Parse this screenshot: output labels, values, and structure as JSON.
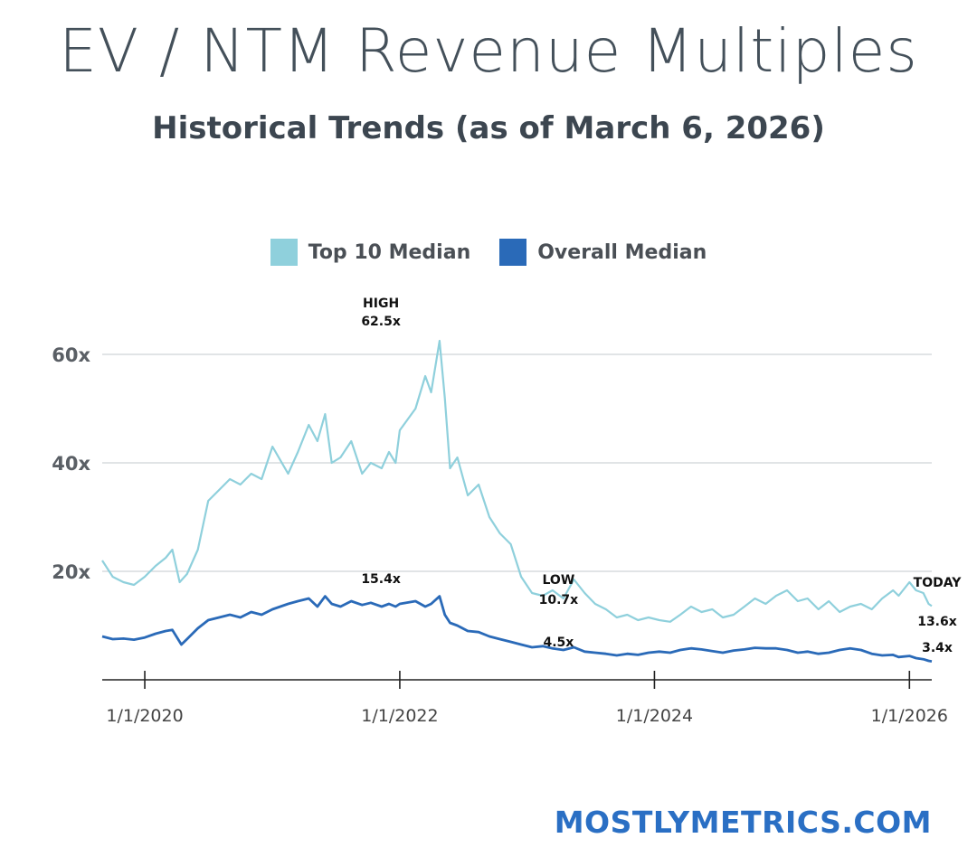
{
  "header": {
    "title": "EV / NTM Revenue Multiples",
    "subtitle": "Historical Trends (as of March 6, 2026)"
  },
  "legend": [
    {
      "label": "Top 10 Median",
      "color": "#8fd0dc"
    },
    {
      "label": "Overall Median",
      "color": "#2a6ab8"
    }
  ],
  "footer": {
    "brand": "MOSTLYMETRICS.COM"
  },
  "chart_data": {
    "type": "line",
    "title": "EV / NTM Revenue Multiples",
    "subtitle": "Historical Trends (as of March 6, 2026)",
    "xlabel": "",
    "ylabel": "",
    "x_ticks": [
      "1/1/2020",
      "1/1/2022",
      "1/1/2024",
      "1/1/2026"
    ],
    "y_ticks": [
      "20x",
      "40x",
      "60x"
    ],
    "ylim": [
      0,
      65
    ],
    "xlim": [
      "2019-09-01",
      "2026-03-06"
    ],
    "grid": true,
    "legend_position": "top-center",
    "series": [
      {
        "name": "Top 10 Median",
        "color": "#8fd0dc",
        "points": [
          [
            "2019-09-01",
            22.0
          ],
          [
            "2019-10-01",
            19.0
          ],
          [
            "2019-11-01",
            18.0
          ],
          [
            "2019-12-01",
            17.5
          ],
          [
            "2020-01-01",
            19.0
          ],
          [
            "2020-02-01",
            21.0
          ],
          [
            "2020-03-01",
            22.5
          ],
          [
            "2020-03-20",
            24.0
          ],
          [
            "2020-04-10",
            18.0
          ],
          [
            "2020-05-01",
            19.5
          ],
          [
            "2020-06-01",
            24.0
          ],
          [
            "2020-07-01",
            33.0
          ],
          [
            "2020-08-01",
            35.0
          ],
          [
            "2020-09-01",
            37.0
          ],
          [
            "2020-10-01",
            36.0
          ],
          [
            "2020-11-01",
            38.0
          ],
          [
            "2020-12-01",
            37.0
          ],
          [
            "2021-01-01",
            43.0
          ],
          [
            "2021-02-15",
            38.0
          ],
          [
            "2021-03-15",
            42.0
          ],
          [
            "2021-04-15",
            47.0
          ],
          [
            "2021-05-10",
            44.0
          ],
          [
            "2021-06-01",
            49.0
          ],
          [
            "2021-06-20",
            40.0
          ],
          [
            "2021-07-15",
            41.0
          ],
          [
            "2021-08-15",
            44.0
          ],
          [
            "2021-09-15",
            38.0
          ],
          [
            "2021-10-10",
            40.0
          ],
          [
            "2021-11-10",
            39.0
          ],
          [
            "2021-12-01",
            42.0
          ],
          [
            "2021-12-20",
            40.0
          ],
          [
            "2022-01-01",
            46.0
          ],
          [
            "2022-02-15",
            50.0
          ],
          [
            "2022-03-15",
            56.0
          ],
          [
            "2022-04-01",
            53.0
          ],
          [
            "2022-04-25",
            62.5
          ],
          [
            "2022-05-10",
            52.0
          ],
          [
            "2022-05-25",
            39.0
          ],
          [
            "2022-06-15",
            41.0
          ],
          [
            "2022-07-15",
            34.0
          ],
          [
            "2022-08-15",
            36.0
          ],
          [
            "2022-09-15",
            30.0
          ],
          [
            "2022-10-15",
            27.0
          ],
          [
            "2022-11-15",
            25.0
          ],
          [
            "2022-12-15",
            19.0
          ],
          [
            "2023-01-15",
            16.0
          ],
          [
            "2023-02-15",
            15.5
          ],
          [
            "2023-03-15",
            16.5
          ],
          [
            "2023-04-15",
            15.0
          ],
          [
            "2023-05-15",
            18.5
          ],
          [
            "2023-06-15",
            16.0
          ],
          [
            "2023-07-15",
            14.0
          ],
          [
            "2023-08-15",
            13.0
          ],
          [
            "2023-09-15",
            11.5
          ],
          [
            "2023-10-15",
            12.0
          ],
          [
            "2023-11-15",
            11.0
          ],
          [
            "2023-12-15",
            11.5
          ],
          [
            "2024-01-15",
            11.0
          ],
          [
            "2024-02-15",
            10.7
          ],
          [
            "2024-03-15",
            12.0
          ],
          [
            "2024-04-15",
            13.5
          ],
          [
            "2024-05-15",
            12.5
          ],
          [
            "2024-06-15",
            13.0
          ],
          [
            "2024-07-15",
            11.5
          ],
          [
            "2024-08-15",
            12.0
          ],
          [
            "2024-09-15",
            13.5
          ],
          [
            "2024-10-15",
            15.0
          ],
          [
            "2024-11-15",
            14.0
          ],
          [
            "2024-12-15",
            15.5
          ],
          [
            "2025-01-15",
            16.5
          ],
          [
            "2025-02-15",
            14.5
          ],
          [
            "2025-03-15",
            15.0
          ],
          [
            "2025-04-15",
            13.0
          ],
          [
            "2025-05-15",
            14.5
          ],
          [
            "2025-06-15",
            12.5
          ],
          [
            "2025-07-15",
            13.5
          ],
          [
            "2025-08-15",
            14.0
          ],
          [
            "2025-09-15",
            13.0
          ],
          [
            "2025-10-15",
            15.0
          ],
          [
            "2025-11-15",
            16.5
          ],
          [
            "2025-12-01",
            15.5
          ],
          [
            "2026-01-01",
            18.0
          ],
          [
            "2026-01-20",
            16.5
          ],
          [
            "2026-02-10",
            16.0
          ],
          [
            "2026-02-25",
            14.0
          ],
          [
            "2026-03-06",
            13.6
          ]
        ]
      },
      {
        "name": "Overall Median",
        "color": "#2a6ab8",
        "points": [
          [
            "2019-09-01",
            8.0
          ],
          [
            "2019-10-01",
            7.5
          ],
          [
            "2019-11-01",
            7.6
          ],
          [
            "2019-12-01",
            7.4
          ],
          [
            "2020-01-01",
            7.8
          ],
          [
            "2020-02-01",
            8.5
          ],
          [
            "2020-03-01",
            9.0
          ],
          [
            "2020-03-20",
            9.2
          ],
          [
            "2020-04-15",
            6.5
          ],
          [
            "2020-05-01",
            7.5
          ],
          [
            "2020-06-01",
            9.5
          ],
          [
            "2020-07-01",
            11.0
          ],
          [
            "2020-08-01",
            11.5
          ],
          [
            "2020-09-01",
            12.0
          ],
          [
            "2020-10-01",
            11.5
          ],
          [
            "2020-11-01",
            12.5
          ],
          [
            "2020-12-01",
            12.0
          ],
          [
            "2021-01-01",
            13.0
          ],
          [
            "2021-02-15",
            14.0
          ],
          [
            "2021-03-15",
            14.5
          ],
          [
            "2021-04-15",
            15.0
          ],
          [
            "2021-05-10",
            13.5
          ],
          [
            "2021-06-01",
            15.4
          ],
          [
            "2021-06-20",
            14.0
          ],
          [
            "2021-07-15",
            13.5
          ],
          [
            "2021-08-15",
            14.5
          ],
          [
            "2021-09-15",
            13.8
          ],
          [
            "2021-10-10",
            14.2
          ],
          [
            "2021-11-10",
            13.5
          ],
          [
            "2021-12-01",
            14.0
          ],
          [
            "2021-12-20",
            13.5
          ],
          [
            "2022-01-01",
            14.0
          ],
          [
            "2022-02-15",
            14.5
          ],
          [
            "2022-03-15",
            13.5
          ],
          [
            "2022-04-01",
            14.0
          ],
          [
            "2022-04-25",
            15.4
          ],
          [
            "2022-05-10",
            12.0
          ],
          [
            "2022-05-25",
            10.5
          ],
          [
            "2022-06-15",
            10.0
          ],
          [
            "2022-07-15",
            9.0
          ],
          [
            "2022-08-15",
            8.8
          ],
          [
            "2022-09-15",
            8.0
          ],
          [
            "2022-10-15",
            7.5
          ],
          [
            "2022-11-15",
            7.0
          ],
          [
            "2022-12-15",
            6.5
          ],
          [
            "2023-01-15",
            6.0
          ],
          [
            "2023-02-15",
            6.2
          ],
          [
            "2023-03-15",
            5.8
          ],
          [
            "2023-04-15",
            5.5
          ],
          [
            "2023-05-15",
            6.0
          ],
          [
            "2023-06-15",
            5.2
          ],
          [
            "2023-07-15",
            5.0
          ],
          [
            "2023-08-15",
            4.8
          ],
          [
            "2023-09-15",
            4.5
          ],
          [
            "2023-10-15",
            4.8
          ],
          [
            "2023-11-15",
            4.6
          ],
          [
            "2023-12-15",
            5.0
          ],
          [
            "2024-01-15",
            5.2
          ],
          [
            "2024-02-15",
            5.0
          ],
          [
            "2024-03-15",
            5.5
          ],
          [
            "2024-04-15",
            5.8
          ],
          [
            "2024-05-15",
            5.6
          ],
          [
            "2024-06-15",
            5.3
          ],
          [
            "2024-07-15",
            5.0
          ],
          [
            "2024-08-15",
            5.4
          ],
          [
            "2024-09-15",
            5.6
          ],
          [
            "2024-10-15",
            5.9
          ],
          [
            "2024-11-15",
            5.8
          ],
          [
            "2024-12-15",
            5.8
          ],
          [
            "2025-01-15",
            5.5
          ],
          [
            "2025-02-15",
            5.0
          ],
          [
            "2025-03-15",
            5.2
          ],
          [
            "2025-04-15",
            4.8
          ],
          [
            "2025-05-15",
            5.0
          ],
          [
            "2025-06-15",
            5.5
          ],
          [
            "2025-07-15",
            5.8
          ],
          [
            "2025-08-15",
            5.5
          ],
          [
            "2025-09-15",
            4.8
          ],
          [
            "2025-10-15",
            4.5
          ],
          [
            "2025-11-15",
            4.6
          ],
          [
            "2025-12-01",
            4.2
          ],
          [
            "2026-01-01",
            4.4
          ],
          [
            "2026-01-20",
            4.0
          ],
          [
            "2026-02-10",
            3.8
          ],
          [
            "2026-02-25",
            3.5
          ],
          [
            "2026-03-06",
            3.4
          ]
        ]
      }
    ],
    "annotations": [
      {
        "series": "Top 10 Median",
        "label": "HIGH",
        "value_label": "62.5x",
        "x": "2021-11-08",
        "y": 62.5
      },
      {
        "series": "Overall Median",
        "label": "",
        "value_label": "15.4x",
        "x": "2021-11-08",
        "y": 15.4
      },
      {
        "series": "Top 10 Median",
        "label": "LOW",
        "value_label": "10.7x",
        "x": "2023-04-01",
        "y": 10.7
      },
      {
        "series": "Overall Median",
        "label": "",
        "value_label": "4.5x",
        "x": "2023-04-01",
        "y": 4.5
      },
      {
        "series": "Top 10 Median",
        "label": "TODAY",
        "value_label": "13.6x",
        "x": "2026-03-06",
        "y": 13.6
      },
      {
        "series": "Overall Median",
        "label": "",
        "value_label": "3.4x",
        "x": "2026-03-06",
        "y": 3.4
      }
    ]
  }
}
